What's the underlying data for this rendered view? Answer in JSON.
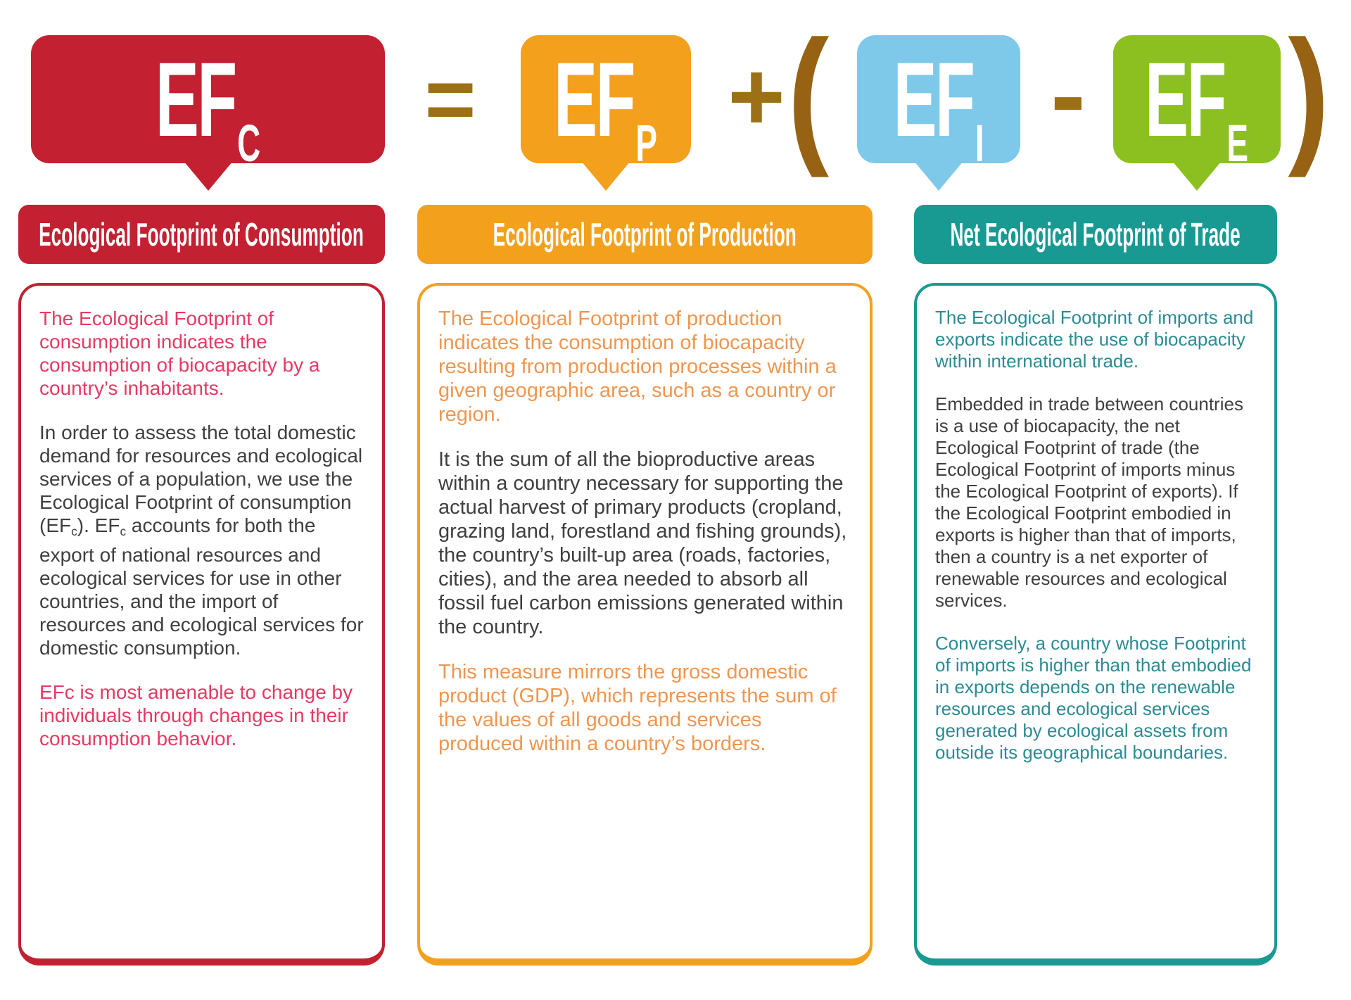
{
  "colors": {
    "red": "#C32031",
    "red_text": "#E73A64",
    "orange": "#F3A11D",
    "orange_text": "#F09650",
    "teal": "#189A93",
    "teal_text": "#2B8B93",
    "blue": "#7EC8EA",
    "green": "#8CC021",
    "dark_text": "#3F3F3F",
    "operator_brown": "#9C7016",
    "paren_brown": "#976213",
    "white": "#FFFFFF"
  },
  "formula": {
    "terms": [
      {
        "main": "EF",
        "sub": "C",
        "meaning": "Ecological Footprint of Consumption"
      },
      {
        "main": "EF",
        "sub": "P",
        "meaning": "Ecological Footprint of Production"
      },
      {
        "main": "EF",
        "sub": "I",
        "meaning": "Ecological Footprint of Imports"
      },
      {
        "main": "EF",
        "sub": "E",
        "meaning": "Ecological Footprint of Exports"
      }
    ],
    "operators": {
      "equals": "=",
      "plus": "+",
      "open_paren": "(",
      "minus": "-",
      "close_paren": ")"
    }
  },
  "columns": [
    {
      "header": "Ecological Footprint of Consumption",
      "paragraphs": [
        {
          "style": "accent",
          "segments": [
            {
              "t": "The Ecological Footprint of consumption indicates the consumption of biocapacity by a country’s inhabitants."
            }
          ]
        },
        {
          "style": "dark",
          "segments": [
            {
              "t": "In order to assess the total domestic demand for resources and ecological services of a population, we use the Ecological Footprint of consumption (EF"
            },
            {
              "t": "c",
              "sub": true
            },
            {
              "t": "). EF"
            },
            {
              "t": "c",
              "sub": true
            },
            {
              "t": " accounts for both the export of national resources and ecological services for use in other countries, and the import of resources and ecological services for domestic consumption."
            }
          ]
        },
        {
          "style": "accent",
          "segments": [
            {
              "t": "EFc is most amenable to change by individuals through changes in their consumption behavior."
            }
          ]
        }
      ]
    },
    {
      "header": "Ecological Footprint of Production",
      "paragraphs": [
        {
          "style": "accent",
          "segments": [
            {
              "t": "The Ecological Footprint of production indicates the consumption of biocapacity resulting from production processes within a given geographic area, such as a country or region."
            }
          ]
        },
        {
          "style": "dark",
          "segments": [
            {
              "t": "It is the sum of all the bioproductive areas within a country necessary for supporting the actual harvest of primary products (cropland, grazing land, forestland and fishing grounds), the country’s built-up area (roads, factories, cities), and the area needed to absorb all fossil fuel carbon emissions generated within the country."
            }
          ]
        },
        {
          "style": "accent",
          "segments": [
            {
              "t": "This measure mirrors the gross domestic product (GDP), which represents the sum of the values of all goods and services produced within a country’s borders."
            }
          ]
        }
      ]
    },
    {
      "header": "Net Ecological Footprint of Trade",
      "paragraphs": [
        {
          "style": "accent",
          "segments": [
            {
              "t": "The Ecological Footprint of imports and exports indicate the use of biocapacity within international trade."
            }
          ]
        },
        {
          "style": "dark",
          "segments": [
            {
              "t": "Embedded in trade between countries is a use of biocapacity, the net Ecological Footprint of trade (the Ecological Footprint of imports minus the Ecological Footprint of exports). If the Ecological Footprint embodied in exports is higher than that of imports, then a country is a net exporter of renewable resources and ecological services."
            }
          ]
        },
        {
          "style": "accent",
          "segments": [
            {
              "t": "Conversely, a country whose Footprint of imports is higher than that embodied in exports depends on the renewable resources and ecological services generated by ecological assets from outside its geographical boundaries."
            }
          ]
        }
      ]
    }
  ]
}
